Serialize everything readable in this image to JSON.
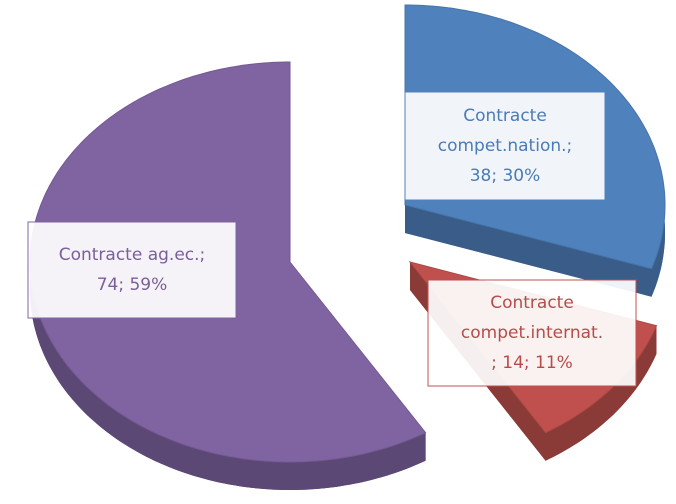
{
  "chart_data": {
    "type": "pie",
    "values": [
      38,
      14,
      74
    ],
    "value_labels": [
      [
        "Contracte",
        "compet.nation.;",
        "38; 30%"
      ],
      [
        "Contracte",
        "compet.internat.",
        "; 14; 11%"
      ],
      [
        "Contracte ag.ec.;",
        "74; 59%"
      ]
    ],
    "colors": [
      "#4f81bd",
      "#c0504d",
      "#8064a2"
    ]
  }
}
